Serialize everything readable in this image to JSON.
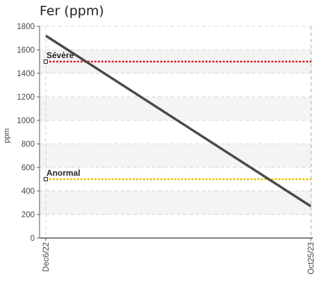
{
  "chart_data": {
    "type": "line",
    "title": "Fer (ppm)",
    "ylabel": "ppm",
    "xlabel": "",
    "ylim": [
      0,
      1800
    ],
    "yticks": [
      "0",
      "200",
      "400",
      "600",
      "800",
      "1000",
      "1200",
      "1400",
      "1600",
      "1800"
    ],
    "xticks": [
      "Dec6/22",
      "Oct25/23"
    ],
    "grid": true,
    "series": [
      {
        "values": [
          1720,
          270
        ],
        "color": "#4a4a4a"
      }
    ],
    "thresholds": [
      {
        "label": "Sévère",
        "value": 1500,
        "color": "#e0202a"
      },
      {
        "label": "Anormal",
        "value": 500,
        "color": "#e8c600"
      }
    ]
  }
}
